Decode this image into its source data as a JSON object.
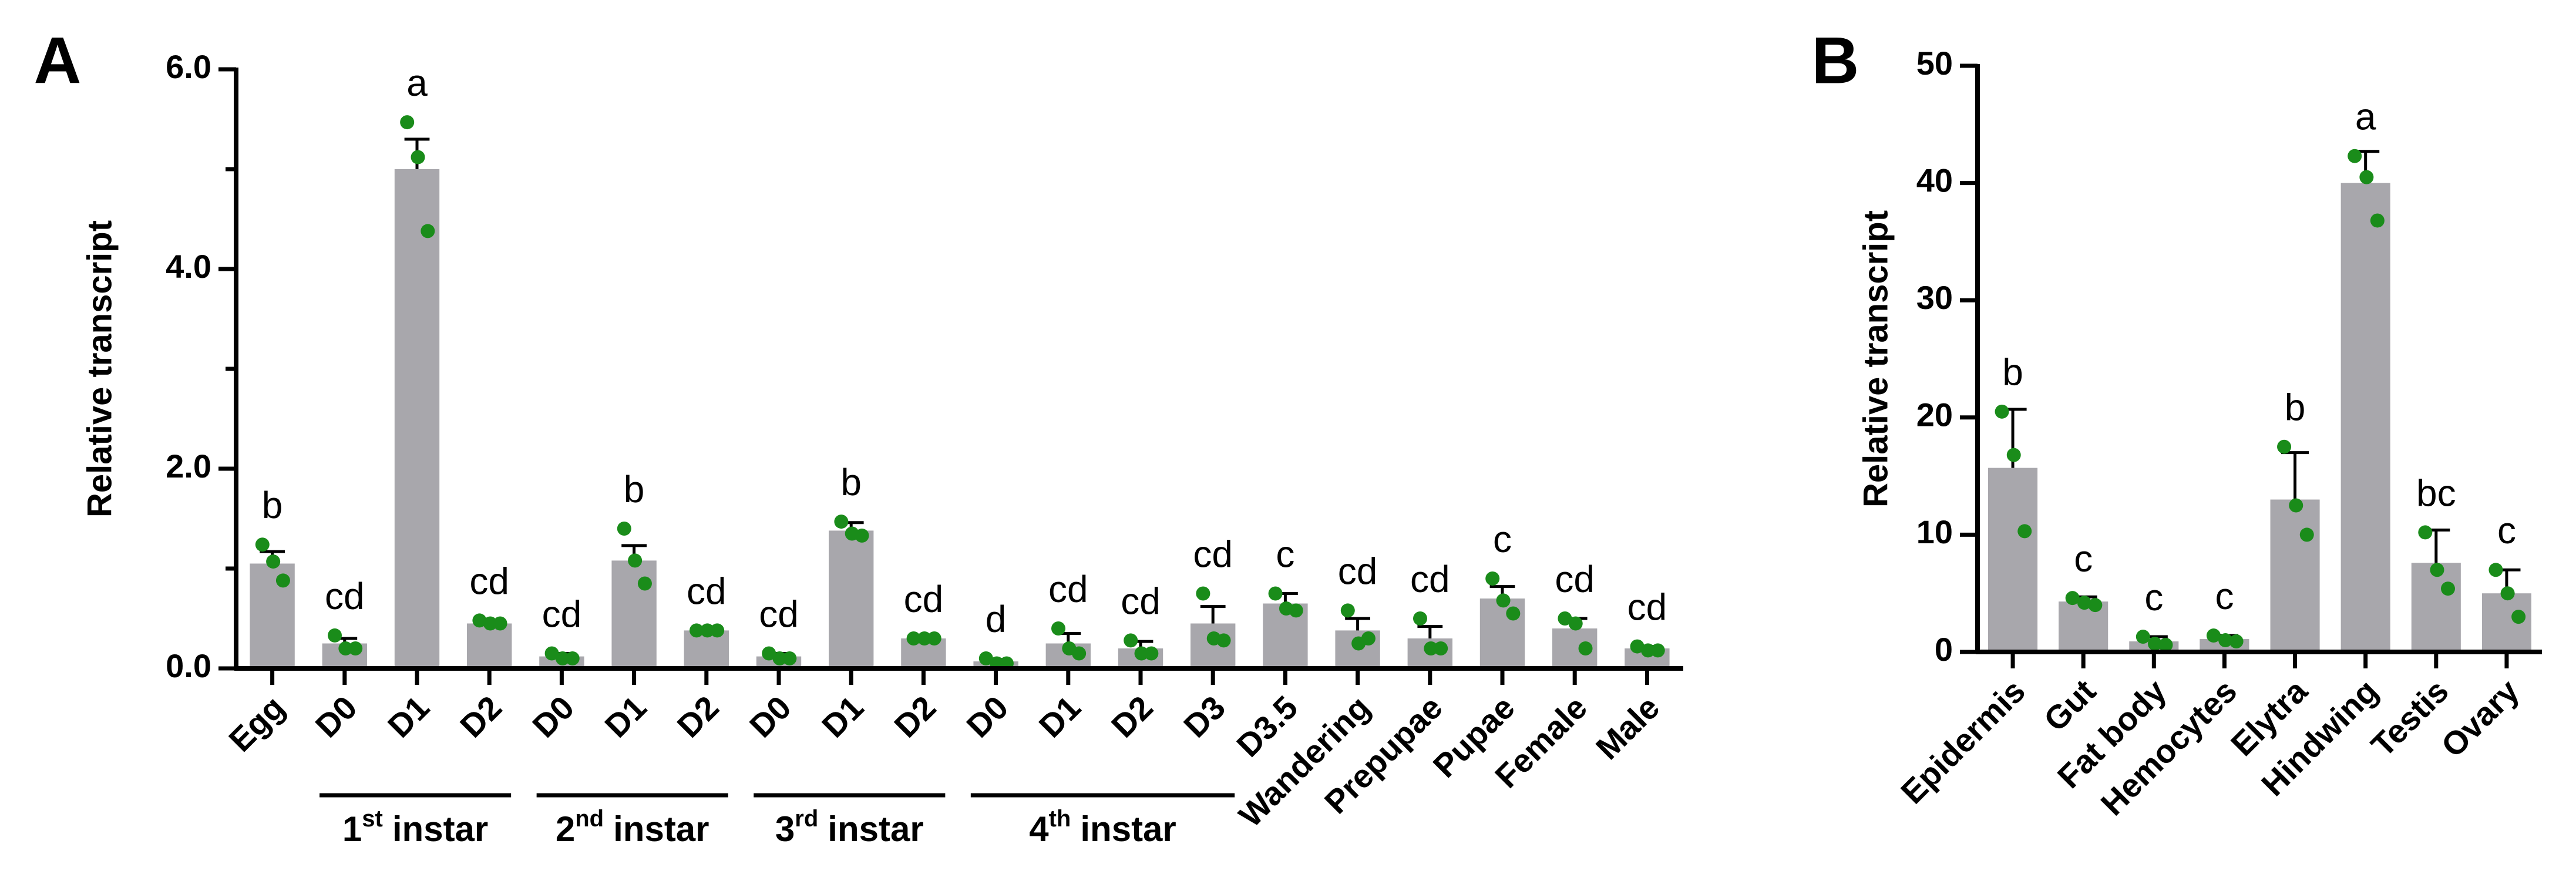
{
  "chart_data": [
    {
      "type": "bar",
      "panel": "A",
      "y_label": "Relative transcript",
      "color": "#a8a7ac",
      "point_color": "#1a8c1a",
      "categories": [
        "Egg",
        "D0",
        "D1",
        "D2",
        "D0",
        "D1",
        "D2",
        "D0",
        "D1",
        "D2",
        "D0",
        "D1",
        "D2",
        "D3",
        "D3.5",
        "Wandering",
        "Prepupae",
        "Pupae",
        "Female",
        "Male"
      ],
      "values": [
        1.05,
        0.25,
        5.0,
        0.45,
        0.12,
        1.08,
        0.38,
        0.12,
        1.38,
        0.3,
        0.07,
        0.25,
        0.2,
        0.45,
        0.65,
        0.38,
        0.3,
        0.7,
        0.4,
        0.2
      ],
      "errors": [
        0.12,
        0.05,
        0.3,
        0.03,
        0.03,
        0.15,
        0.02,
        0.03,
        0.08,
        0.02,
        0.02,
        0.1,
        0.07,
        0.17,
        0.1,
        0.12,
        0.12,
        0.12,
        0.1,
        0.02
      ],
      "points": [
        [
          1.24,
          1.07,
          0.88
        ],
        [
          0.33,
          0.2,
          0.2
        ],
        [
          5.47,
          5.12,
          4.38
        ],
        [
          0.48,
          0.45,
          0.45
        ],
        [
          0.15,
          0.1,
          0.1
        ],
        [
          1.4,
          1.08,
          0.85
        ],
        [
          0.38,
          0.38,
          0.38
        ],
        [
          0.15,
          0.1,
          0.1
        ],
        [
          1.47,
          1.35,
          1.33
        ],
        [
          0.3,
          0.3,
          0.3
        ],
        [
          0.1,
          0.05,
          0.05
        ],
        [
          0.4,
          0.2,
          0.15
        ],
        [
          0.28,
          0.15,
          0.15
        ],
        [
          0.75,
          0.3,
          0.28
        ],
        [
          0.75,
          0.6,
          0.58
        ],
        [
          0.58,
          0.25,
          0.3
        ],
        [
          0.5,
          0.2,
          0.2
        ],
        [
          0.9,
          0.68,
          0.55
        ],
        [
          0.5,
          0.45,
          0.2
        ],
        [
          0.22,
          0.18,
          0.18
        ]
      ],
      "letters": [
        "b",
        "cd",
        "a",
        "cd",
        "cd",
        "b",
        "cd",
        "cd",
        "b",
        "cd",
        "d",
        "cd",
        "cd",
        "cd",
        "c",
        "cd",
        "cd",
        "c",
        "cd",
        "cd"
      ],
      "groups": [
        {
          "number": "1",
          "suffix": "st",
          "text": "instar",
          "from": 1,
          "to": 3
        },
        {
          "number": "2",
          "suffix": "nd",
          "text": "instar",
          "from": 4,
          "to": 6
        },
        {
          "number": "3",
          "suffix": "rd",
          "text": "instar",
          "from": 7,
          "to": 9
        },
        {
          "number": "4",
          "suffix": "th",
          "text": "instar",
          "from": 10,
          "to": 13
        }
      ],
      "ylim": [
        0,
        6
      ],
      "yticks": [
        {
          "value": 0,
          "label": "0.0"
        },
        {
          "value": 2,
          "label": "2.0"
        },
        {
          "value": 4,
          "label": "4.0"
        },
        {
          "value": 6,
          "label": "6.0"
        }
      ],
      "yminorticks": [
        1,
        3,
        5
      ]
    },
    {
      "type": "bar",
      "panel": "B",
      "y_label": "Relative transcript",
      "color": "#a8a7ac",
      "point_color": "#1a8c1a",
      "categories": [
        "Epidermis",
        "Gut",
        "Fat body",
        "Hemocytes",
        "Elytra",
        "Hindwing",
        "Testis",
        "Ovary"
      ],
      "values": [
        15.7,
        4.3,
        0.9,
        1.1,
        13,
        40,
        7.6,
        5
      ],
      "errors": [
        5,
        0.4,
        0.4,
        0.3,
        4,
        2.7,
        2.8,
        2
      ],
      "points": [
        [
          20.5,
          16.8,
          10.3
        ],
        [
          4.6,
          4.2,
          4.0
        ],
        [
          1.3,
          0.7,
          0.6
        ],
        [
          1.4,
          1.0,
          0.9
        ],
        [
          17.5,
          12.5,
          10
        ],
        [
          42.3,
          40.5,
          36.8
        ],
        [
          10.2,
          7.0,
          5.4
        ],
        [
          7,
          5,
          3
        ]
      ],
      "letters": [
        "b",
        "c",
        "c",
        "c",
        "b",
        "a",
        "bc",
        "c"
      ],
      "ylim": [
        0,
        50
      ],
      "yticks": [
        0,
        10,
        20,
        30,
        40,
        50
      ]
    }
  ]
}
